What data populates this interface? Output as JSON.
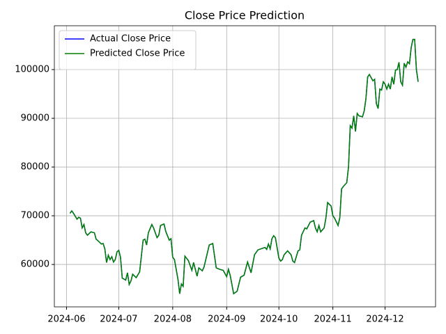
{
  "chart_data": {
    "type": "line",
    "title": "Close Price Prediction",
    "x": [
      19877,
      19878,
      19879,
      19881,
      19882,
      19883,
      19884,
      19885,
      19886,
      19887,
      19889,
      19891,
      19892,
      19893,
      19895,
      19896,
      19897,
      19898,
      19899,
      19900,
      19901,
      19902,
      19903,
      19904,
      19905,
      19906,
      19907,
      19909,
      19910,
      19911,
      19912,
      19913,
      19915,
      19917,
      19919,
      19920,
      19921,
      19922,
      19924,
      19925,
      19927,
      19928,
      19929,
      19931,
      19932,
      19934,
      19935,
      19936,
      19937,
      19939,
      19940,
      19941,
      19942,
      19943,
      19945,
      19947,
      19948,
      19950,
      19951,
      19953,
      19954,
      19955,
      19957,
      19959,
      19961,
      19963,
      19965,
      19967,
      19968,
      19969,
      19971,
      19973,
      19975,
      19977,
      19979,
      19981,
      19983,
      19985,
      19989,
      19990,
      19991,
      19992,
      19993,
      19994,
      19995,
      19997,
      19998,
      19999,
      20000,
      20002,
      20004,
      20005,
      20006,
      20008,
      20009,
      20010,
      20012,
      20013,
      20015,
      20017,
      20018,
      20019,
      20020,
      20021,
      20023,
      20024,
      20025,
      20027,
      20028,
      20029,
      20031,
      20032,
      20033,
      20034,
      20036,
      20037,
      20038,
      20039,
      20040,
      20041,
      20042,
      20043,
      20045,
      20046,
      20047,
      20048,
      20049,
      20051,
      20052,
      20053,
      20054,
      20055,
      20056,
      20057,
      20058,
      20059,
      20060,
      20061,
      20062,
      20063,
      20064,
      20065,
      20066,
      20067,
      20068,
      20069,
      20070,
      20071,
      20072,
      20073,
      20074,
      20075,
      20076,
      20077
    ],
    "series": [
      {
        "name": "Actual Close Price",
        "color": "#0000ff",
        "values": [
          70500,
          71000,
          70500,
          69300,
          69700,
          69500,
          67500,
          68200,
          66500,
          66000,
          66700,
          66500,
          65200,
          64900,
          64200,
          64300,
          63200,
          60400,
          61900,
          61000,
          61600,
          60500,
          61000,
          62600,
          62900,
          61500,
          57200,
          56800,
          58300,
          55900,
          56600,
          58000,
          57300,
          58500,
          65000,
          65200,
          64000,
          66500,
          68200,
          67500,
          65500,
          66000,
          68000,
          68300,
          66800,
          65000,
          65300,
          61500,
          61000,
          57000,
          54000,
          56000,
          55500,
          61700,
          60800,
          58800,
          60400,
          57600,
          59300,
          58700,
          59500,
          61000,
          64000,
          64300,
          59300,
          59000,
          58800,
          57500,
          59000,
          57800,
          54000,
          54500,
          57400,
          57800,
          60500,
          58300,
          62000,
          63000,
          63500,
          63100,
          64200,
          63200,
          65300,
          65900,
          65500,
          61300,
          60700,
          61000,
          62000,
          62800,
          62000,
          60700,
          60400,
          62800,
          63000,
          66000,
          67500,
          67300,
          68700,
          69000,
          67500,
          66700,
          68000,
          66700,
          67500,
          69500,
          72700,
          72000,
          70000,
          69500,
          68000,
          69600,
          75500,
          76000,
          76800,
          80000,
          88500,
          88000,
          90500,
          87300,
          91000,
          90500,
          90300,
          91500,
          94000,
          98500,
          99000,
          97700,
          98000,
          93000,
          92000,
          96000,
          95800,
          97500,
          97000,
          96000,
          97000,
          96000,
          98500,
          97000,
          99900,
          100000,
          101500,
          97500,
          96800,
          101300,
          100500,
          101600,
          101200,
          104500,
          106200,
          106200,
          100000,
          97500
        ]
      },
      {
        "name": "Predicted Close Price",
        "color": "#008000",
        "values": [
          70500,
          71000,
          70500,
          69300,
          69700,
          69500,
          67500,
          68200,
          66500,
          66000,
          66700,
          66500,
          65200,
          64900,
          64200,
          64300,
          63200,
          60400,
          61900,
          61000,
          61600,
          60500,
          61000,
          62600,
          62900,
          61500,
          57200,
          56800,
          58300,
          55900,
          56600,
          58000,
          57300,
          58500,
          65000,
          65200,
          64000,
          66500,
          68200,
          67500,
          65500,
          66000,
          68000,
          68300,
          66800,
          65000,
          65300,
          61500,
          61000,
          57000,
          54000,
          56000,
          55500,
          61700,
          60800,
          58800,
          60400,
          57600,
          59300,
          58700,
          59500,
          61000,
          64000,
          64300,
          59300,
          59000,
          58800,
          57500,
          59000,
          57800,
          54000,
          54500,
          57400,
          57800,
          60500,
          58300,
          62000,
          63000,
          63500,
          63100,
          64200,
          63200,
          65300,
          65900,
          65500,
          61300,
          60700,
          61000,
          62000,
          62800,
          62000,
          60700,
          60400,
          62800,
          63000,
          66000,
          67500,
          67300,
          68700,
          69000,
          67500,
          66700,
          68000,
          66700,
          67500,
          69500,
          72700,
          72000,
          70000,
          69500,
          68000,
          69600,
          75500,
          76000,
          76800,
          80000,
          88500,
          88000,
          90500,
          87300,
          91000,
          90500,
          90300,
          91500,
          94000,
          98500,
          99000,
          97700,
          98000,
          93000,
          92000,
          96000,
          95800,
          97500,
          97000,
          96000,
          97000,
          96000,
          98500,
          97000,
          99900,
          100000,
          101500,
          97500,
          96800,
          101300,
          100500,
          101600,
          101200,
          104500,
          106200,
          106200,
          100000,
          97500
        ]
      }
    ],
    "xlim": [
      19868,
      20087
    ],
    "xticks": [
      {
        "value": 19875,
        "label": "2024-06"
      },
      {
        "value": 19905,
        "label": "2024-07"
      },
      {
        "value": 19936,
        "label": "2024-08"
      },
      {
        "value": 19967,
        "label": "2024-09"
      },
      {
        "value": 19997,
        "label": "2024-10"
      },
      {
        "value": 20028,
        "label": "2024-11"
      },
      {
        "value": 20058,
        "label": "2024-12"
      }
    ],
    "ylim": [
      51300,
      109000
    ],
    "yticks": [
      60000,
      70000,
      80000,
      90000,
      100000
    ],
    "grid": true,
    "legend": "upper left"
  }
}
